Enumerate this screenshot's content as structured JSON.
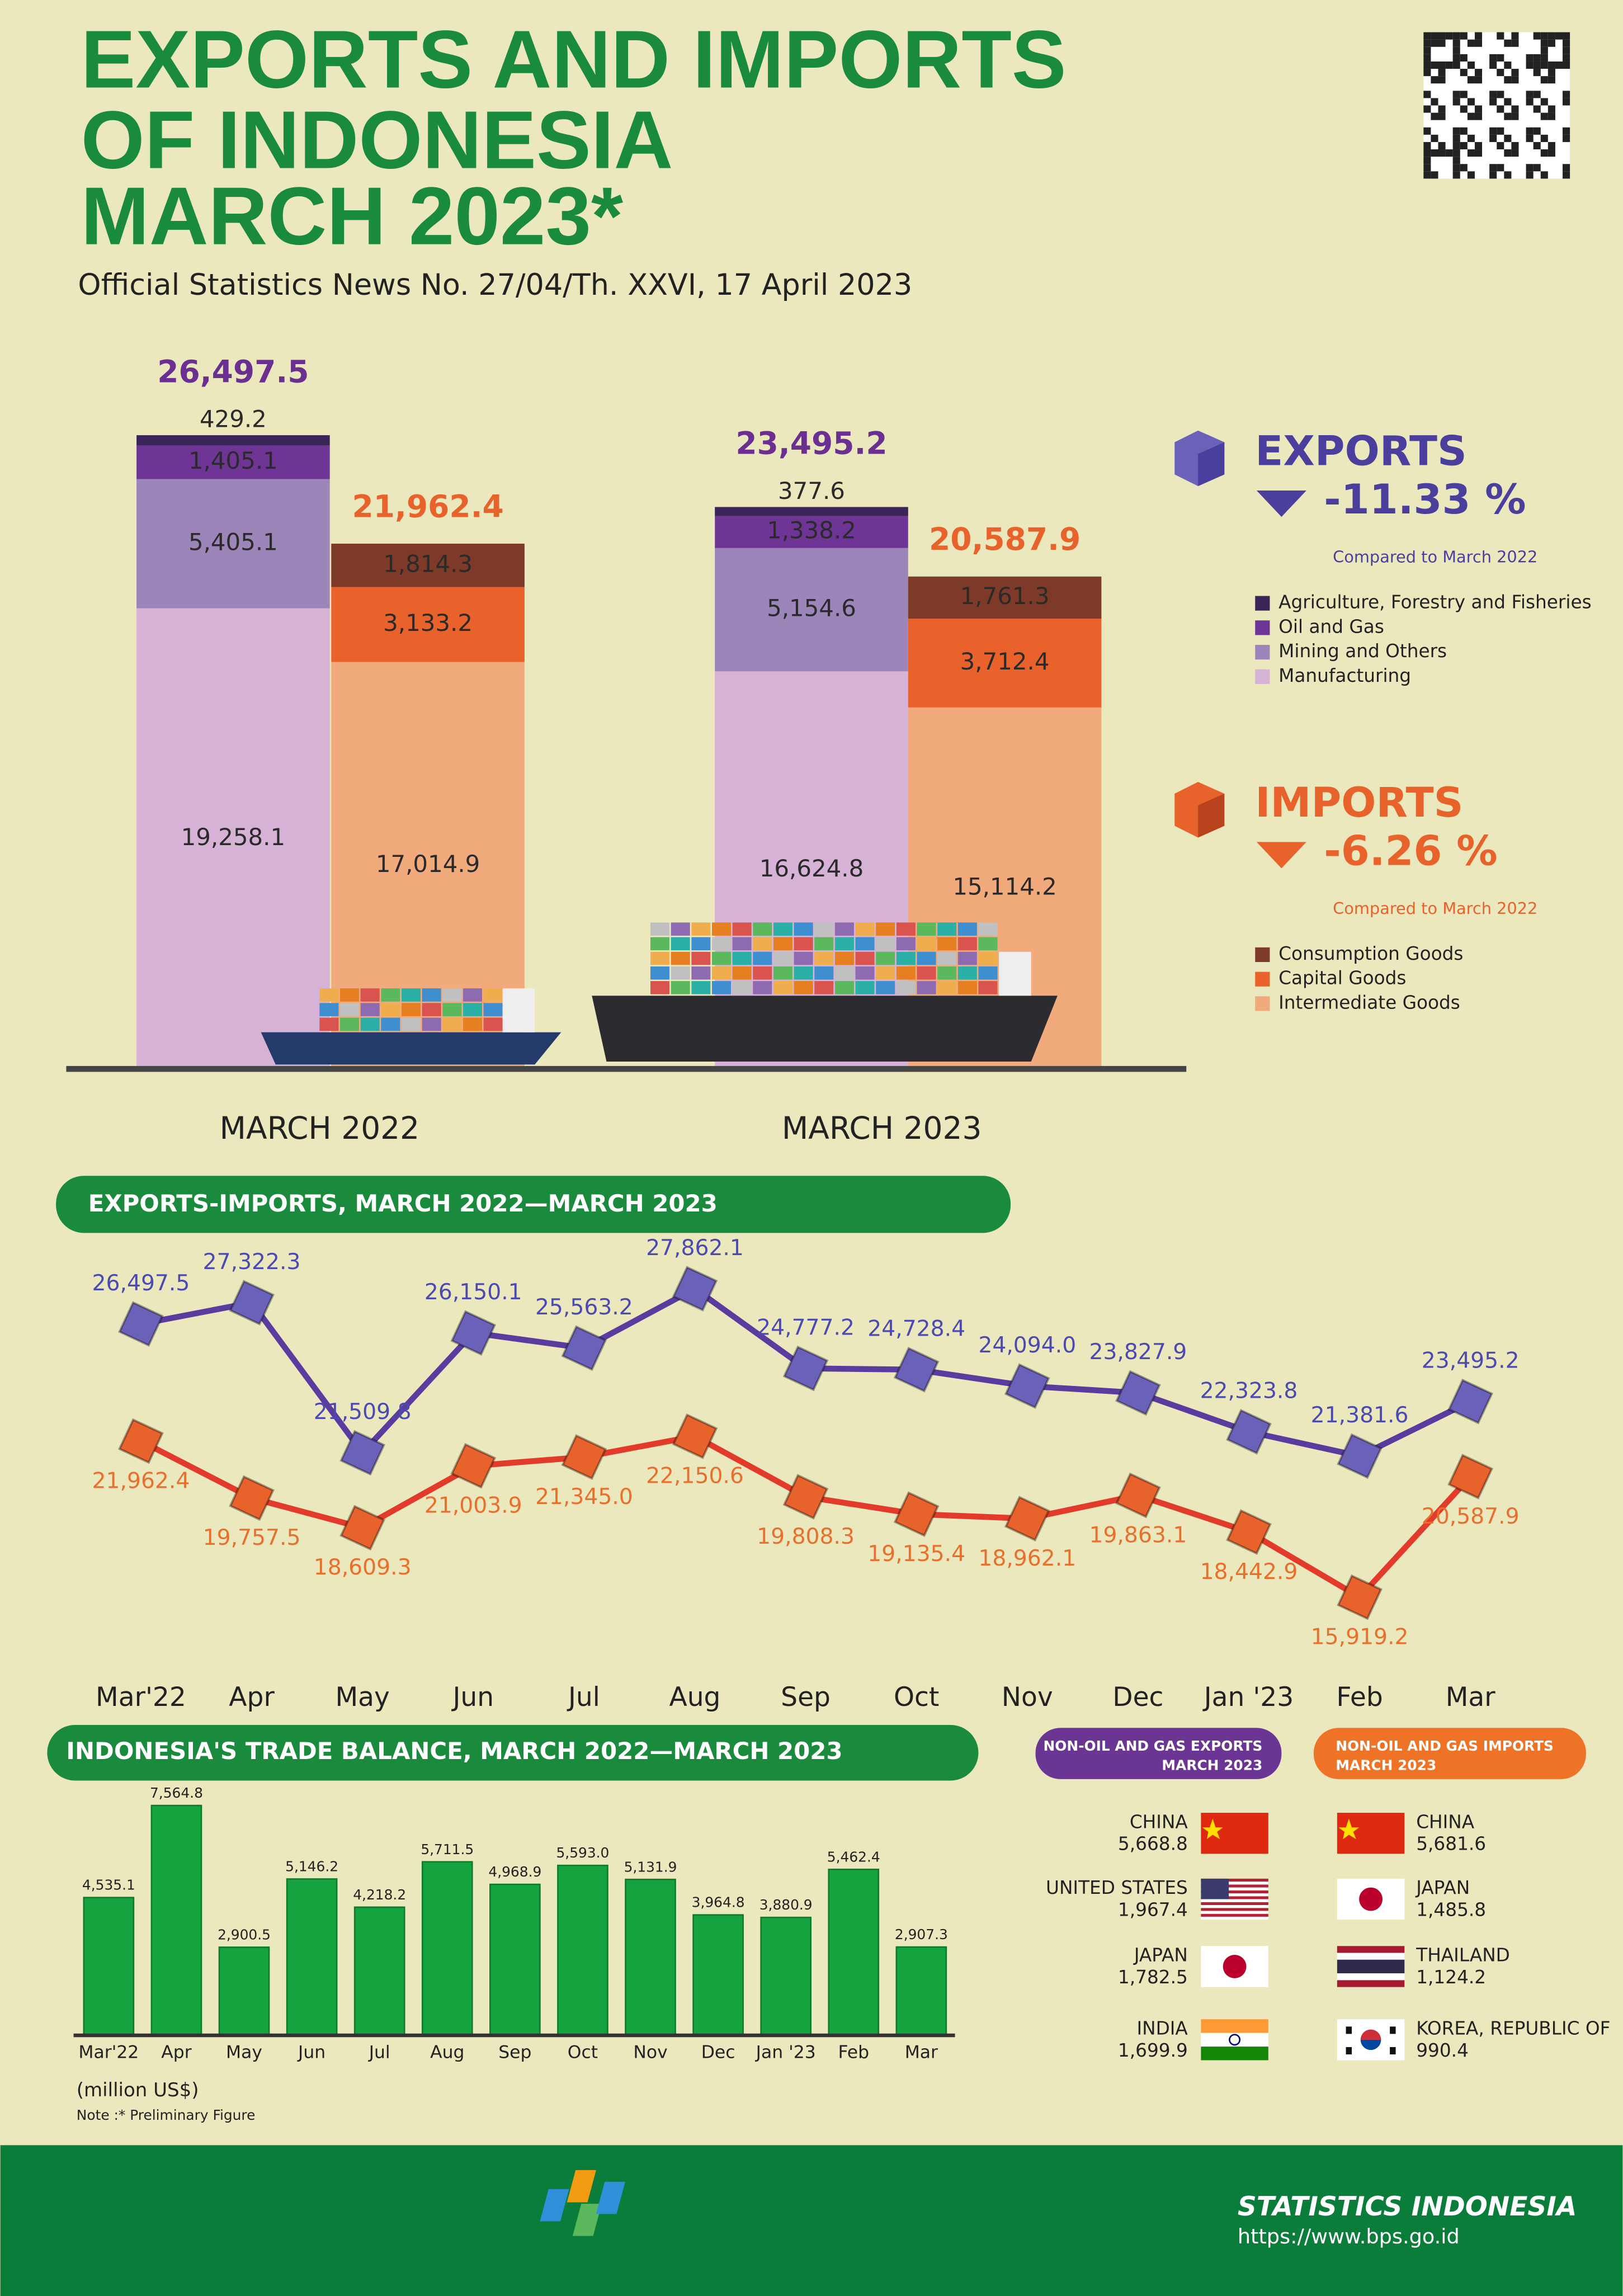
{
  "header": {
    "title_lines": [
      "EXPORTS AND IMPORTS",
      "OF INDONESIA",
      "MARCH 2023*"
    ],
    "subtitle": "Official Statistics News No. 27/04/Th. XXVI, 17 April 2023"
  },
  "chart_data": [
    {
      "type": "stacked-bar",
      "categories": [
        "MARCH 2022",
        "MARCH 2023"
      ],
      "ylim": [
        0,
        27000
      ],
      "groups": [
        {
          "name": "EXPORTS",
          "change": -11.33,
          "change_label": "-11.33 %",
          "note": "Compared to March 2022",
          "totals": [
            26497.5,
            23495.2
          ],
          "total_labels": [
            "26,497.5",
            "23,495.2"
          ],
          "total_color": "#6b2e91",
          "series": [
            {
              "name": "Manufacturing",
              "color": "#d6b3d6",
              "values": [
                19258.1,
                16624.8
              ],
              "value_labels": [
                "19,258.1",
                "16,624.8"
              ]
            },
            {
              "name": "Mining and Others",
              "color": "#9c86b9",
              "values": [
                5405.1,
                5154.6
              ],
              "value_labels": [
                "5,405.1",
                "5,154.6"
              ]
            },
            {
              "name": "Oil and Gas",
              "color": "#6e3596",
              "values": [
                1405.1,
                1338.2
              ],
              "value_labels": [
                "1,405.1",
                "1,338.2"
              ]
            },
            {
              "name": "Agriculture, Forestry and Fisheries",
              "color": "#3b2458",
              "values": [
                429.2,
                377.6
              ],
              "value_labels": [
                "429.2",
                "377.6"
              ]
            }
          ]
        },
        {
          "name": "IMPORTS",
          "change": -6.26,
          "change_label": "-6.26 %",
          "note": "Compared to March 2022",
          "totals": [
            21962.4,
            20587.9
          ],
          "total_labels": [
            "21,962.4",
            "20,587.9"
          ],
          "total_color": "#e8622c",
          "series": [
            {
              "name": "Intermediate Goods",
              "color": "#f0aa7c",
              "values": [
                17014.9,
                15114.2
              ],
              "value_labels": [
                "17,014.9",
                "15,114.2"
              ]
            },
            {
              "name": "Capital Goods",
              "color": "#e9622c",
              "values": [
                3133.2,
                3712.4
              ],
              "value_labels": [
                "3,133.2",
                "3,712.4"
              ]
            },
            {
              "name": "Consumption Goods",
              "color": "#7d3a28",
              "values": [
                1814.3,
                1761.3
              ],
              "value_labels": [
                "1,814.3",
                "1,761.3"
              ]
            }
          ]
        }
      ]
    },
    {
      "type": "line",
      "title": "EXPORTS-IMPORTS, MARCH 2022—MARCH 2023",
      "categories": [
        "Mar'22",
        "Apr",
        "May",
        "Jun",
        "Jul",
        "Aug",
        "Sep",
        "Oct",
        "Nov",
        "Dec",
        "Jan '23",
        "Feb",
        "Mar"
      ],
      "ylim": [
        15000,
        29000
      ],
      "series": [
        {
          "color": "#5a3c9e",
          "marker_color": "#6a62b8",
          "label_color": "#4a4ab0",
          "values": [
            26497.5,
            27322.3,
            21509.8,
            26150.1,
            25563.2,
            27862.1,
            24777.2,
            24728.4,
            24094.0,
            23827.9,
            22323.8,
            21381.6,
            23495.2
          ],
          "value_labels": [
            "26,497.5",
            "27,322.3",
            "21,509.8",
            "26,150.1",
            "25,563.2",
            "27,862.1",
            "24,777.2",
            "24,728.4",
            "24,094.0",
            "23,827.9",
            "22,323.8",
            "21,381.6",
            "23,495.2"
          ]
        },
        {
          "color": "#e23b2b",
          "marker_color": "#e8622c",
          "label_color": "#e8702c",
          "values": [
            21962.4,
            19757.5,
            18609.3,
            21003.9,
            21345.0,
            22150.6,
            19808.3,
            19135.4,
            18962.1,
            19863.1,
            18442.9,
            15919.2,
            20587.9
          ],
          "value_labels": [
            "21,962.4",
            "19,757.5",
            "18,609.3",
            "21,003.9",
            "21,345.0",
            "22,150.6",
            "19,808.3",
            "19,135.4",
            "18,962.1",
            "19,863.1",
            "18,442.9",
            "15,919.2",
            "20,587.9"
          ]
        }
      ]
    },
    {
      "type": "bar",
      "title": "INDONESIA'S TRADE BALANCE, MARCH 2022—MARCH 2023",
      "categories": [
        "Mar'22",
        "Apr",
        "May",
        "Jun",
        "Jul",
        "Aug",
        "Sep",
        "Oct",
        "Nov",
        "Dec",
        "Jan '23",
        "Feb",
        "Mar"
      ],
      "ylim": [
        0,
        8000
      ],
      "color": "#14a33e",
      "values": [
        4535.1,
        7564.8,
        2900.5,
        5146.2,
        4218.2,
        5711.5,
        4968.9,
        5593.0,
        5131.9,
        3964.8,
        3880.9,
        5462.4,
        2907.3
      ],
      "value_labels": [
        "4,535.1",
        "7,564.8",
        "2,900.5",
        "5,146.2",
        "4,218.2",
        "5,711.5",
        "4,968.9",
        "5,593.0",
        "5,131.9",
        "3,964.8",
        "3,880.9",
        "5,462.4",
        "2,907.3"
      ]
    }
  ],
  "partners": {
    "exports": {
      "title_lines": [
        "NON-OIL AND GAS EXPORTS",
        "MARCH 2023"
      ],
      "items": [
        {
          "country": "CHINA",
          "value": "5,668.8"
        },
        {
          "country": "UNITED STATES",
          "value": "1,967.4"
        },
        {
          "country": "JAPAN",
          "value": "1,782.5"
        },
        {
          "country": "INDIA",
          "value": "1,699.9"
        }
      ]
    },
    "imports": {
      "title_lines": [
        "NON-OIL AND GAS IMPORTS",
        "MARCH 2023"
      ],
      "items": [
        {
          "country": "CHINA",
          "value": "5,681.6"
        },
        {
          "country": "JAPAN",
          "value": "1,485.8"
        },
        {
          "country": "THAILAND",
          "value": "1,124.2"
        },
        {
          "country": "KOREA, REPUBLIC OF",
          "value": "990.4"
        }
      ]
    }
  },
  "footer": {
    "unit": "(million US$)",
    "note": "Note :* Preliminary Figure",
    "org": "STATISTICS INDONESIA",
    "url": "https://www.bps.go.id"
  }
}
